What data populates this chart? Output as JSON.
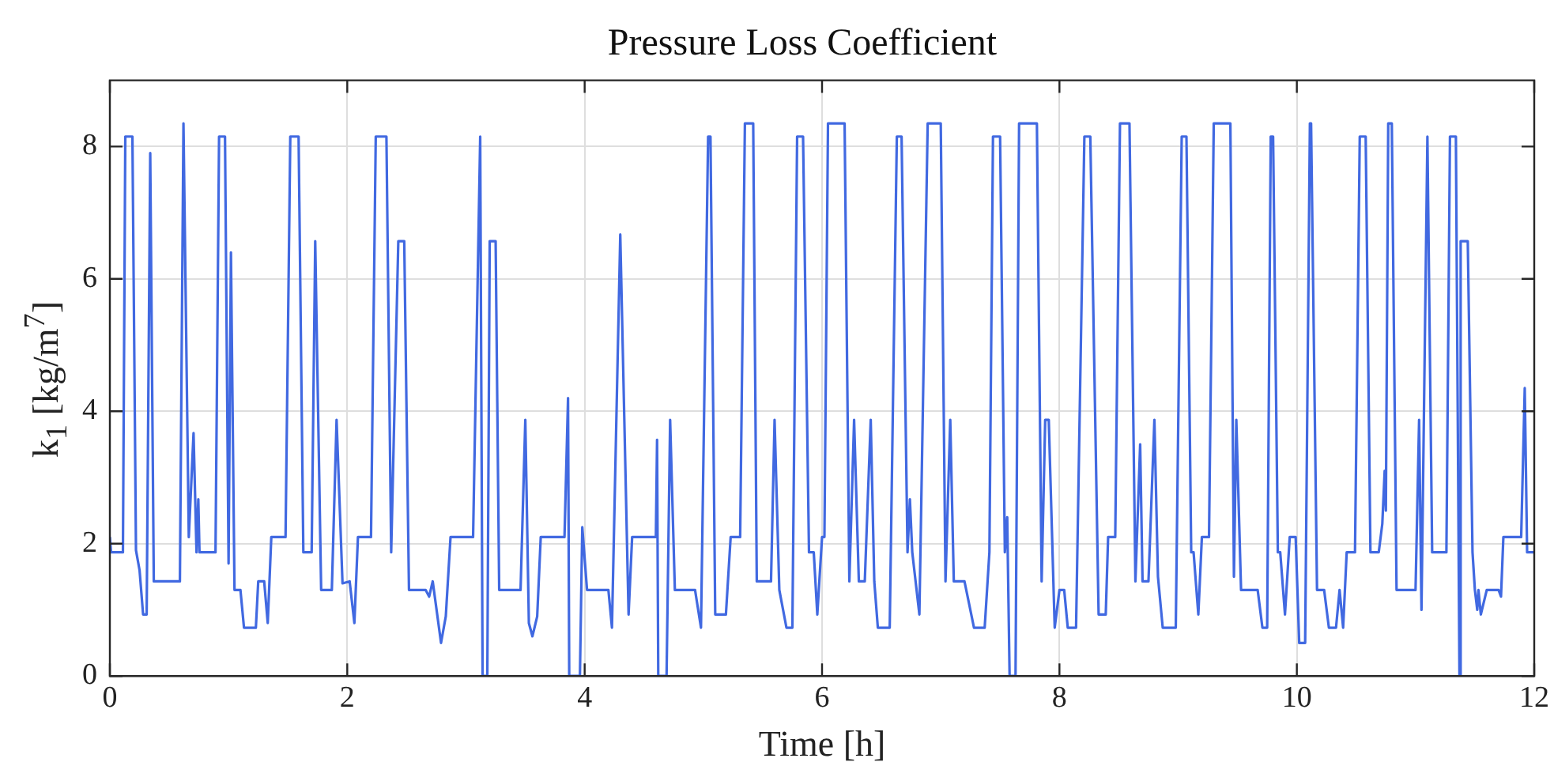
{
  "chart_data": {
    "type": "line",
    "title": "Pressure Loss Coefficient",
    "xlabel": "Time [h]",
    "ylabel": "k$_{1}$ [kg/m$^{7}$]",
    "x": [
      0,
      0.01,
      0.11,
      0.13,
      0.19,
      0.22,
      0.25,
      0.28,
      0.31,
      0.34,
      0.37,
      0.59,
      0.62,
      0.665,
      0.705,
      0.73,
      0.745,
      0.755,
      0.89,
      0.92,
      0.97,
      1.0,
      1.02,
      1.05,
      1.1,
      1.13,
      1.23,
      1.25,
      1.3,
      1.33,
      1.36,
      1.48,
      1.52,
      1.59,
      1.63,
      1.7,
      1.73,
      1.78,
      1.87,
      1.91,
      1.96,
      2.02,
      2.06,
      2.09,
      2.2,
      2.24,
      2.33,
      2.37,
      2.43,
      2.48,
      2.52,
      2.66,
      2.69,
      2.72,
      2.79,
      2.83,
      2.87,
      3.06,
      3.12,
      3.14,
      3.18,
      3.2,
      3.25,
      3.28,
      3.46,
      3.5,
      3.53,
      3.56,
      3.6,
      3.63,
      3.83,
      3.86,
      3.87,
      3.96,
      3.98,
      4.02,
      4.2,
      4.23,
      4.3,
      4.37,
      4.4,
      4.6,
      4.61,
      4.62,
      4.69,
      4.72,
      4.76,
      4.93,
      4.98,
      5.04,
      5.06,
      5.1,
      5.19,
      5.23,
      5.31,
      5.35,
      5.42,
      5.45,
      5.57,
      5.6,
      5.64,
      5.7,
      5.75,
      5.79,
      5.84,
      5.89,
      5.93,
      5.96,
      6.0,
      6.02,
      6.05,
      6.19,
      6.23,
      6.27,
      6.31,
      6.36,
      6.41,
      6.44,
      6.47,
      6.57,
      6.63,
      6.67,
      6.72,
      6.74,
      6.76,
      6.82,
      6.89,
      7.0,
      7.04,
      7.08,
      7.11,
      7.2,
      7.28,
      7.37,
      7.41,
      7.44,
      7.5,
      7.54,
      7.56,
      7.58,
      7.63,
      7.66,
      7.81,
      7.85,
      7.88,
      7.91,
      7.96,
      8.0,
      8.04,
      8.07,
      8.14,
      8.21,
      8.26,
      8.33,
      8.39,
      8.41,
      8.47,
      8.51,
      8.59,
      8.64,
      8.68,
      8.7,
      8.75,
      8.8,
      8.83,
      8.87,
      8.98,
      9.03,
      9.07,
      9.11,
      9.13,
      9.17,
      9.2,
      9.26,
      9.3,
      9.44,
      9.47,
      9.49,
      9.53,
      9.67,
      9.71,
      9.75,
      9.78,
      9.8,
      9.84,
      9.86,
      9.9,
      9.94,
      9.99,
      10.02,
      10.07,
      10.11,
      10.12,
      10.17,
      10.23,
      10.27,
      10.33,
      10.36,
      10.39,
      10.42,
      10.49,
      10.53,
      10.58,
      10.62,
      10.69,
      10.72,
      10.74,
      10.75,
      10.77,
      10.8,
      10.84,
      11.0,
      11.03,
      11.05,
      11.1,
      11.14,
      11.26,
      11.29,
      11.34,
      11.37,
      11.38,
      11.44,
      11.48,
      11.5,
      11.52,
      11.53,
      11.55,
      11.6,
      11.7,
      11.72,
      11.74,
      11.89,
      11.92,
      11.94,
      12
    ],
    "series": [
      {
        "color": "#4169e1",
        "values": [
          2.1,
          1.87,
          1.87,
          8.15,
          8.15,
          1.9,
          1.6,
          0.93,
          0.93,
          7.9,
          1.43,
          1.43,
          8.35,
          2.1,
          3.67,
          1.87,
          2.67,
          1.87,
          1.87,
          8.15,
          8.15,
          1.7,
          6.4,
          1.3,
          1.3,
          0.73,
          0.73,
          1.43,
          1.43,
          0.8,
          2.1,
          2.1,
          8.15,
          8.15,
          1.87,
          1.87,
          6.57,
          1.3,
          1.3,
          3.87,
          1.4,
          1.43,
          0.8,
          2.1,
          2.1,
          8.15,
          8.15,
          1.87,
          6.57,
          6.57,
          1.3,
          1.3,
          1.2,
          1.43,
          0.5,
          0.9,
          2.1,
          2.1,
          8.15,
          0,
          0,
          6.57,
          6.57,
          1.3,
          1.3,
          3.87,
          0.8,
          0.6,
          0.9,
          2.1,
          2.1,
          4.2,
          0,
          0,
          2.25,
          1.3,
          1.3,
          0.73,
          6.67,
          0.93,
          2.1,
          2.1,
          3.57,
          0,
          0,
          3.87,
          1.3,
          1.3,
          0.73,
          8.15,
          8.15,
          0.93,
          0.93,
          2.1,
          2.1,
          8.35,
          8.35,
          1.43,
          1.43,
          3.87,
          1.3,
          0.73,
          0.73,
          8.15,
          8.15,
          1.87,
          1.87,
          0.93,
          2.1,
          2.1,
          8.35,
          8.35,
          1.43,
          3.87,
          1.43,
          1.43,
          3.87,
          1.43,
          0.73,
          0.73,
          8.15,
          8.15,
          1.87,
          2.67,
          1.87,
          0.93,
          8.35,
          8.35,
          1.43,
          3.87,
          1.43,
          1.43,
          0.73,
          0.73,
          1.87,
          8.15,
          8.15,
          1.87,
          2.4,
          0,
          0,
          8.35,
          8.35,
          1.43,
          3.87,
          3.87,
          0.73,
          1.3,
          1.3,
          0.73,
          0.73,
          8.15,
          8.15,
          0.93,
          0.93,
          2.1,
          2.1,
          8.35,
          8.35,
          1.43,
          3.5,
          1.43,
          1.43,
          3.87,
          1.5,
          0.73,
          0.73,
          8.15,
          8.15,
          1.87,
          1.87,
          0.93,
          2.1,
          2.1,
          8.35,
          8.35,
          1.5,
          3.87,
          1.3,
          1.3,
          0.73,
          0.73,
          8.15,
          8.15,
          1.87,
          1.87,
          0.93,
          2.1,
          2.1,
          0.5,
          0.5,
          8.35,
          8.35,
          1.3,
          1.3,
          0.73,
          0.73,
          1.3,
          0.73,
          1.87,
          1.87,
          8.15,
          8.15,
          1.87,
          1.87,
          2.3,
          3.1,
          2.5,
          8.35,
          8.35,
          1.3,
          1.3,
          3.87,
          1.0,
          8.15,
          1.87,
          1.87,
          8.15,
          8.15,
          0,
          6.57,
          6.57,
          1.87,
          1.3,
          1.0,
          1.3,
          0.93,
          1.3,
          1.3,
          1.2,
          2.1,
          2.1,
          4.35,
          1.87,
          1.87
        ]
      }
    ],
    "xlim": [
      0,
      12
    ],
    "xticks": [
      0,
      2,
      4,
      6,
      8,
      10,
      12
    ],
    "ylim": [
      0,
      9
    ],
    "yticks": [
      0,
      2,
      4,
      6,
      8
    ],
    "grid": true,
    "legend": false,
    "marker": "none",
    "line_style": "solid"
  }
}
